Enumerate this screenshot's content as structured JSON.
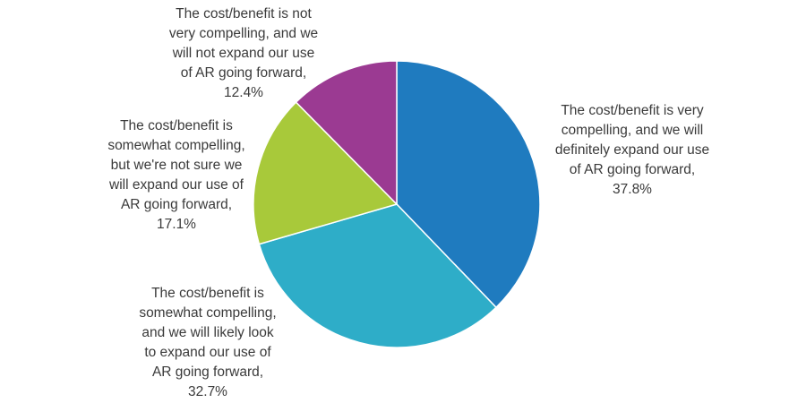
{
  "chart_data": {
    "type": "pie",
    "title": "",
    "start_angle_deg": 0,
    "direction": "clockwise",
    "slices": [
      {
        "label_lines": [
          "The cost/benefit is very",
          "compelling, and we will",
          "definitely expand our use",
          "of AR going forward,",
          "37.8%"
        ],
        "value": 37.8,
        "color": "#1f7bbf"
      },
      {
        "label_lines": [
          "The cost/benefit is",
          "somewhat compelling,",
          "and we will likely look",
          "to expand our use of",
          "AR going forward,",
          "32.7%"
        ],
        "value": 32.7,
        "color": "#2eadc8"
      },
      {
        "label_lines": [
          "The cost/benefit is",
          "somewhat compelling,",
          "but we're not sure we",
          "will expand our use of",
          "AR going forward,",
          "17.1%"
        ],
        "value": 17.1,
        "color": "#a8c93a"
      },
      {
        "label_lines": [
          "The cost/benefit is not",
          "very compelling, and we",
          "will not expand our use",
          "of AR going forward,",
          "12.4%"
        ],
        "value": 12.4,
        "color": "#9b3a92"
      }
    ]
  }
}
